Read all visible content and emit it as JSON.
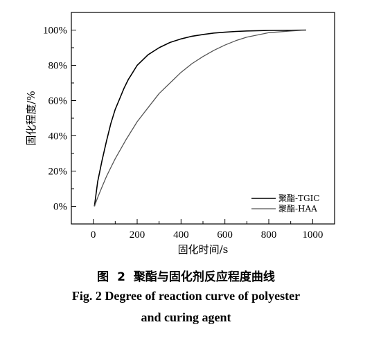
{
  "chart_data": {
    "type": "line",
    "xlabel": "固化时间/s",
    "ylabel": "固化程度/%",
    "xlim": [
      -100,
      1100
    ],
    "ylim": [
      -0.1,
      1.1
    ],
    "x_ticks": [
      0,
      200,
      400,
      600,
      800,
      1000
    ],
    "y_ticks": [
      0,
      0.2,
      0.4,
      0.6,
      0.8,
      1.0
    ],
    "x_tick_labels": [
      "0",
      "200",
      "400",
      "600",
      "800",
      "1000"
    ],
    "y_tick_labels": [
      "0%",
      "20%",
      "40%",
      "60%",
      "80%",
      "100%"
    ],
    "grid": false,
    "legend_position": "bottom-right",
    "series": [
      {
        "name": "聚酯-TGIC",
        "color": "#000000",
        "x": [
          5,
          20,
          40,
          60,
          80,
          100,
          120,
          140,
          160,
          180,
          200,
          250,
          300,
          350,
          400,
          450,
          500,
          550,
          600,
          650,
          700,
          800,
          900,
          970
        ],
        "y": [
          0.0,
          0.14,
          0.26,
          0.37,
          0.47,
          0.55,
          0.61,
          0.67,
          0.72,
          0.76,
          0.8,
          0.86,
          0.9,
          0.93,
          0.95,
          0.965,
          0.975,
          0.983,
          0.988,
          0.992,
          0.995,
          0.998,
          0.999,
          1.0
        ]
      },
      {
        "name": "聚酯-HAA",
        "color": "#555555",
        "x": [
          5,
          20,
          40,
          60,
          80,
          100,
          150,
          200,
          250,
          300,
          350,
          400,
          450,
          500,
          550,
          600,
          650,
          700,
          800,
          900,
          970
        ],
        "y": [
          0.0,
          0.05,
          0.11,
          0.17,
          0.22,
          0.27,
          0.38,
          0.48,
          0.56,
          0.64,
          0.7,
          0.76,
          0.81,
          0.85,
          0.885,
          0.915,
          0.94,
          0.96,
          0.985,
          0.995,
          1.0
        ]
      }
    ]
  },
  "caption": {
    "cn": "图 2  聚酯与固化剂反应程度曲线",
    "en_line1": "Fig. 2   Degree of reaction curve of polyester",
    "en_line2": "and curing agent"
  }
}
